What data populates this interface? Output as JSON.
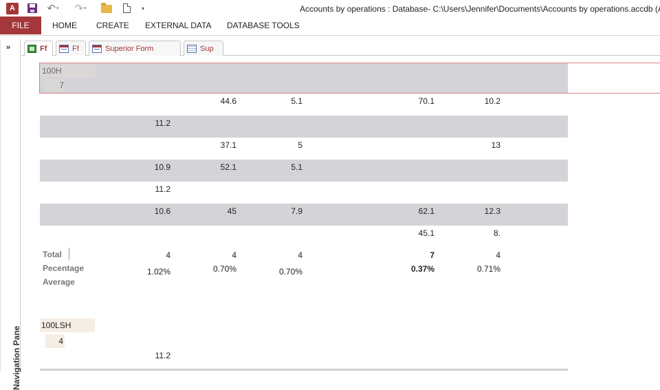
{
  "window": {
    "title": "Accounts by operations : Database- C:\\Users\\Jennifer\\Documents\\Accounts by operations.accdb (A",
    "app_icon_text": "A",
    "quick_access": {
      "customize_glyph": "▾",
      "undo_glyph": "↶",
      "redo_glyph": "↷",
      "dropdown_glyph": "▾"
    }
  },
  "ribbon": {
    "tabs": [
      "FILE",
      "HOME",
      "CREATE",
      "EXTERNAL DATA",
      "DATABASE TOOLS"
    ]
  },
  "nav_pane": {
    "toggle_glyph": "»",
    "label": "Navigation Pane"
  },
  "doc_tabs": [
    {
      "label": "Ff",
      "icon": "datasheet-icon",
      "active": true
    },
    {
      "label": "Ff",
      "icon": "form-icon",
      "active": false
    },
    {
      "label": "Superior Form",
      "icon": "form-icon",
      "active": false
    },
    {
      "label": "Sup",
      "icon": "table-icon",
      "active": false
    }
  ],
  "report": {
    "group1": {
      "label": "100H",
      "count": "7",
      "rows": [
        {
          "c1": "",
          "c2": "44.6",
          "c3": "5.1",
          "c4": "70.1",
          "c5": "10.2"
        },
        {
          "c1": "11.2",
          "c2": "",
          "c3": "",
          "c4": "",
          "c5": ""
        },
        {
          "c1": "",
          "c2": "37.1",
          "c3": "5",
          "c4": "",
          "c5": "13"
        },
        {
          "c1": "10.9",
          "c2": "52.1",
          "c3": "5.1",
          "c4": "",
          "c5": ""
        },
        {
          "c1": "11.2",
          "c2": "",
          "c3": "",
          "c4": "",
          "c5": ""
        },
        {
          "c1": "10.6",
          "c2": "45",
          "c3": "7.9",
          "c4": "62.1",
          "c5": "12.3"
        },
        {
          "c1": "",
          "c2": "",
          "c3": "",
          "c4": "45.1",
          "c5": "8."
        }
      ],
      "totals": {
        "total_label": "Total",
        "percentage_label": "Pecentage",
        "average_label": "Average",
        "counts": [
          "4",
          "4",
          "4",
          "7",
          "4"
        ],
        "percentages": [
          "1.02%",
          "0.70%",
          "0.70%",
          "0.37%",
          "0.71%"
        ]
      }
    },
    "group2": {
      "label": "100LSH",
      "count": "4",
      "rows": [
        {
          "c1": "11.2"
        }
      ]
    }
  },
  "colors": {
    "access_red": "#a4373a",
    "band_gray": "#d4d4d8",
    "selection_border": "#e08080"
  }
}
